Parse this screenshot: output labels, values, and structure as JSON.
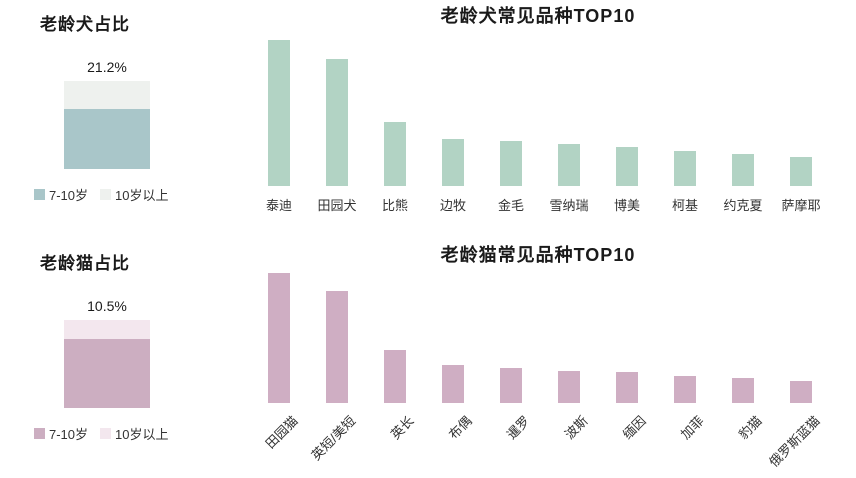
{
  "page": {
    "background": "#ffffff",
    "text_color": "#222222"
  },
  "chart_data": [
    {
      "id": "dog_share",
      "type": "bar",
      "subtype": "single-stacked-column",
      "title": "老龄犬占比",
      "value_label": "21.2%",
      "note": "total elderly-dog share shown above stacked column; no axes or gridlines",
      "segments": [
        {
          "label": "7-10岁",
          "color": "#a9c6c9",
          "fraction": 0.68
        },
        {
          "label": "10岁以上",
          "color": "#eef1ee",
          "fraction": 0.32
        }
      ],
      "legend": [
        {
          "label": "7-10岁",
          "color": "#a9c6c9"
        },
        {
          "label": "10岁以上",
          "color": "#eef1ee"
        }
      ],
      "legend_position": "bottom"
    },
    {
      "id": "dog_top10",
      "type": "bar",
      "title": "老龄犬常见品种TOP10",
      "categories": [
        "泰迪",
        "田园犬",
        "比熊",
        "边牧",
        "金毛",
        "雪纳瑞",
        "博美",
        "柯基",
        "约克夏",
        "萨摩耶"
      ],
      "values": [
        100,
        87,
        44,
        32,
        31,
        29,
        27,
        24,
        22,
        20
      ],
      "value_scale": "percent_of_max (no value axis shown)",
      "bar_color": "#b2d3c4",
      "label_rotation": 0,
      "grid": false,
      "xlabel": "",
      "ylabel": ""
    },
    {
      "id": "cat_share",
      "type": "bar",
      "subtype": "single-stacked-column",
      "title": "老龄猫占比",
      "value_label": "10.5%",
      "note": "total elderly-cat share shown above stacked column; no axes or gridlines",
      "segments": [
        {
          "label": "7-10岁",
          "color": "#ccaec1",
          "fraction": 0.78
        },
        {
          "label": "10岁以上",
          "color": "#f3e7ee",
          "fraction": 0.22
        }
      ],
      "legend": [
        {
          "label": "7-10岁",
          "color": "#ccaec1"
        },
        {
          "label": "10岁以上",
          "color": "#f3e7ee"
        }
      ],
      "legend_position": "bottom"
    },
    {
      "id": "cat_top10",
      "type": "bar",
      "title": "老龄猫常见品种TOP10",
      "categories": [
        "田园猫",
        "英短/美短",
        "英长",
        "布偶",
        "暹罗",
        "波斯",
        "缅因",
        "加菲",
        "豹猫",
        "俄罗斯蓝猫"
      ],
      "values": [
        100,
        86,
        41,
        29,
        27,
        25,
        24,
        21,
        19,
        17
      ],
      "value_scale": "percent_of_max (no value axis shown)",
      "bar_color": "#cfaec3",
      "label_rotation": -45,
      "grid": false,
      "xlabel": "",
      "ylabel": ""
    }
  ]
}
